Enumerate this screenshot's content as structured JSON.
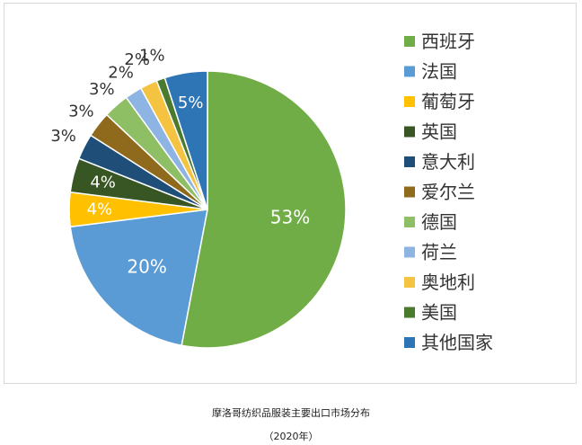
{
  "chart_data": {
    "type": "pie",
    "title": "",
    "start_angle_deg": 0,
    "direction": "clockwise",
    "legend_position": "right",
    "slices": [
      {
        "label": "西班牙",
        "value": 53,
        "display": "53%",
        "color": "#70ad47",
        "label_inside": true
      },
      {
        "label": "法国",
        "value": 20,
        "display": "20%",
        "color": "#5b9bd5",
        "label_inside": true
      },
      {
        "label": "葡萄牙",
        "value": 4,
        "display": "4%",
        "color": "#ffc000",
        "label_inside": true
      },
      {
        "label": "英国",
        "value": 4,
        "display": "4%",
        "color": "#375623",
        "label_inside": true
      },
      {
        "label": "意大利",
        "value": 3,
        "display": "3%",
        "color": "#1f4e79",
        "label_inside": false
      },
      {
        "label": "爱尔兰",
        "value": 3,
        "display": "3%",
        "color": "#8f6a1c",
        "label_inside": false
      },
      {
        "label": "德国",
        "value": 3,
        "display": "3%",
        "color": "#8fbf65",
        "label_inside": false
      },
      {
        "label": "荷兰",
        "value": 2,
        "display": "2%",
        "color": "#8db4e2",
        "label_inside": false
      },
      {
        "label": "奥地利",
        "value": 2,
        "display": "2%",
        "color": "#f5c342",
        "label_inside": false
      },
      {
        "label": "美国",
        "value": 1,
        "display": "1%",
        "color": "#4a7a2e",
        "label_inside": false
      },
      {
        "label": "其他国家",
        "value": 5,
        "display": "5%",
        "color": "#2e75b6",
        "label_inside": true
      }
    ]
  },
  "caption": {
    "title": "摩洛哥纺织品服装主要出口市场分布",
    "year": "（2020年）"
  }
}
